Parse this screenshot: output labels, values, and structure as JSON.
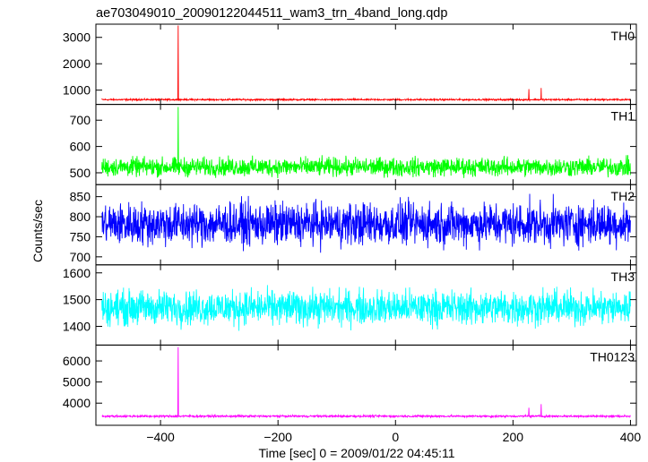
{
  "chart_data": {
    "type": "line",
    "title": "ae703049010_20090122044511_wam3_trn_4band_long.qdp",
    "xlabel": "Time [sec] 0 = 2009/01/22 04:45:11",
    "ylabel": "Counts/sec",
    "xlim": [
      -510,
      410
    ],
    "x_ticks": [
      -400,
      -200,
      0,
      200,
      400
    ],
    "x_tick_labels": [
      "−400",
      "−200",
      "0",
      "200",
      "400"
    ],
    "panels": [
      {
        "name": "TH0",
        "color": "#ff0000",
        "ylim": [
          460,
          3500
        ],
        "yticks": [
          1000,
          2000,
          3000
        ],
        "ytick_labels": [
          "1000",
          "2000",
          "3000"
        ],
        "baseline": 640,
        "noise": 25,
        "spikes": [
          {
            "x": -370,
            "y": 3450
          },
          {
            "x": 227,
            "y": 1040
          },
          {
            "x": 248,
            "y": 1080
          }
        ]
      },
      {
        "name": "TH1",
        "color": "#00ff00",
        "ylim": [
          455,
          760
        ],
        "yticks": [
          500,
          600,
          700
        ],
        "ytick_labels": [
          "500",
          "600",
          "700"
        ],
        "baseline": 522,
        "noise": 30,
        "spikes": [
          {
            "x": -370,
            "y": 750
          }
        ]
      },
      {
        "name": "TH2",
        "color": "#0000ff",
        "ylim": [
          680,
          880
        ],
        "yticks": [
          700,
          750,
          800,
          850
        ],
        "ytick_labels": [
          "700",
          "750",
          "800",
          "850"
        ],
        "baseline": 782,
        "noise": 45,
        "spikes": []
      },
      {
        "name": "TH3",
        "color": "#00ffff",
        "ylim": [
          1330,
          1630
        ],
        "yticks": [
          1400,
          1500,
          1600
        ],
        "ytick_labels": [
          "1400",
          "1500",
          "1600"
        ],
        "baseline": 1470,
        "noise": 55,
        "spikes": []
      },
      {
        "name": "TH0123",
        "color": "#ff00ff",
        "ylim": [
          2950,
          6750
        ],
        "yticks": [
          4000,
          5000,
          6000
        ],
        "ytick_labels": [
          "4000",
          "5000",
          "6000"
        ],
        "baseline": 3380,
        "noise": 40,
        "spikes": [
          {
            "x": -370,
            "y": 6650
          },
          {
            "x": 227,
            "y": 3780
          },
          {
            "x": 248,
            "y": 3950
          }
        ]
      }
    ]
  }
}
